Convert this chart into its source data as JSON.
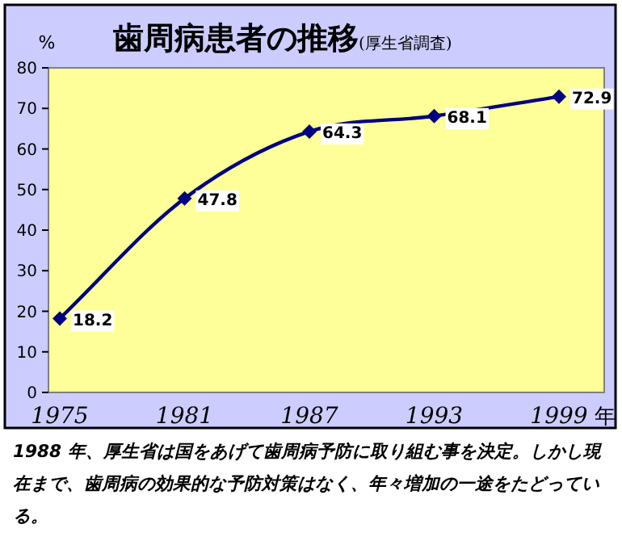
{
  "chart_data": {
    "type": "line",
    "title": "歯周病患者の推移",
    "subtitle": "(厚生省調査)",
    "ylabel": "%",
    "xlabel": "年",
    "categories": [
      "1975",
      "1981",
      "1987",
      "1993",
      "1999"
    ],
    "series": [
      {
        "color": "#000080",
        "values": [
          18.2,
          47.8,
          64.3,
          68.1,
          72.9
        ]
      }
    ],
    "ylim": [
      0,
      80
    ],
    "yticks": [
      0,
      10,
      20,
      30,
      40,
      50,
      60,
      70,
      80
    ],
    "marker": "diamond",
    "line_style": "solid",
    "data_labels": true,
    "grid": false,
    "annotations": [
      "1988 年、厚生省は国をあげて歯周病予防に取り組む事を決定。しかし現在まで、歯周病の効果的な予防対策はなく、年々増加の一途をたどっている。"
    ]
  }
}
